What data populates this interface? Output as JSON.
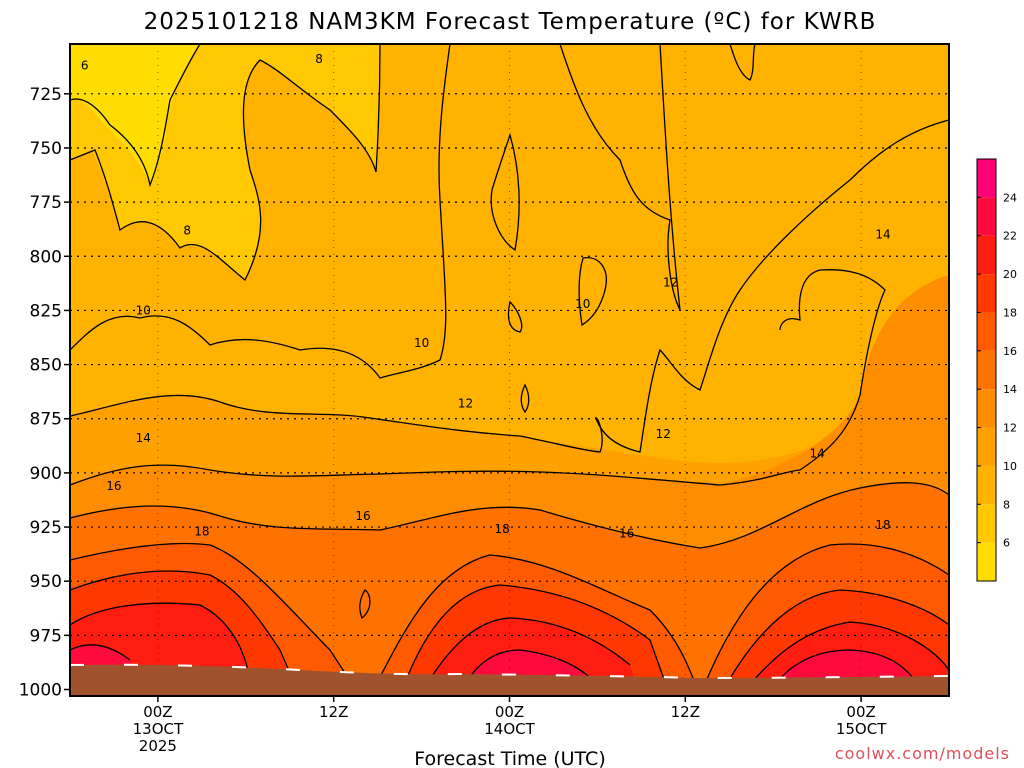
{
  "chart_data": {
    "type": "heatmap",
    "title": "2025101218 NAM3KM Forecast Temperature (ºC) for KWRB",
    "xlabel": "Forecast Time (UTC)",
    "ylabel": "",
    "y_axis": {
      "ticks": [
        725,
        750,
        775,
        800,
        825,
        850,
        875,
        900,
        925,
        950,
        975,
        1000
      ],
      "range": [
        1003,
        702
      ],
      "inverted": true
    },
    "x_axis": {
      "range_hours": [
        0,
        60
      ],
      "ticks": [
        {
          "hour": 6,
          "lines": [
            "00Z",
            "13OCT",
            "2025"
          ]
        },
        {
          "hour": 18,
          "lines": [
            "12Z"
          ]
        },
        {
          "hour": 30,
          "lines": [
            "00Z",
            "14OCT"
          ]
        },
        {
          "hour": 42,
          "lines": [
            "12Z"
          ]
        },
        {
          "hour": 54,
          "lines": [
            "00Z",
            "15OCT"
          ]
        }
      ]
    },
    "grid": true,
    "colorbar": {
      "placement": "right",
      "levels": [
        4,
        6,
        8,
        10,
        12,
        14,
        16,
        18,
        20,
        22,
        24,
        26
      ],
      "tick_labels": [
        6,
        8,
        10,
        12,
        14,
        16,
        18,
        20,
        22,
        24
      ],
      "colors": [
        "#ffdd00",
        "#ffc800",
        "#ffb300",
        "#ffa100",
        "#ff8d00",
        "#ff7200",
        "#ff5a00",
        "#ff3800",
        "#ff1c10",
        "#ff0a3c",
        "#ff0077"
      ]
    },
    "contour_labels": [
      {
        "text": "6",
        "hour": 1.0,
        "p": 712
      },
      {
        "text": "8",
        "hour": 17.0,
        "p": 709
      },
      {
        "text": "8",
        "hour": 8.0,
        "p": 788
      },
      {
        "text": "10",
        "hour": 5.0,
        "p": 825
      },
      {
        "text": "10",
        "hour": 24.0,
        "p": 840
      },
      {
        "text": "10",
        "hour": 35.0,
        "p": 822
      },
      {
        "text": "12",
        "hour": 27.0,
        "p": 868
      },
      {
        "text": "12",
        "hour": 41.0,
        "p": 812
      },
      {
        "text": "12",
        "hour": 40.5,
        "p": 882
      },
      {
        "text": "14",
        "hour": 5.0,
        "p": 884
      },
      {
        "text": "14",
        "hour": 51.0,
        "p": 891
      },
      {
        "text": "14",
        "hour": 55.5,
        "p": 790
      },
      {
        "text": "16",
        "hour": 3.0,
        "p": 906
      },
      {
        "text": "16",
        "hour": 20.0,
        "p": 920
      },
      {
        "text": "16",
        "hour": 38.0,
        "p": 928
      },
      {
        "text": "18",
        "hour": 9.0,
        "p": 927
      },
      {
        "text": "18",
        "hour": 29.5,
        "p": 926
      },
      {
        "text": "18",
        "hour": 55.5,
        "p": 924
      }
    ],
    "ground_pressure_hpa": 998
  },
  "credit": "coolwx.com/models"
}
